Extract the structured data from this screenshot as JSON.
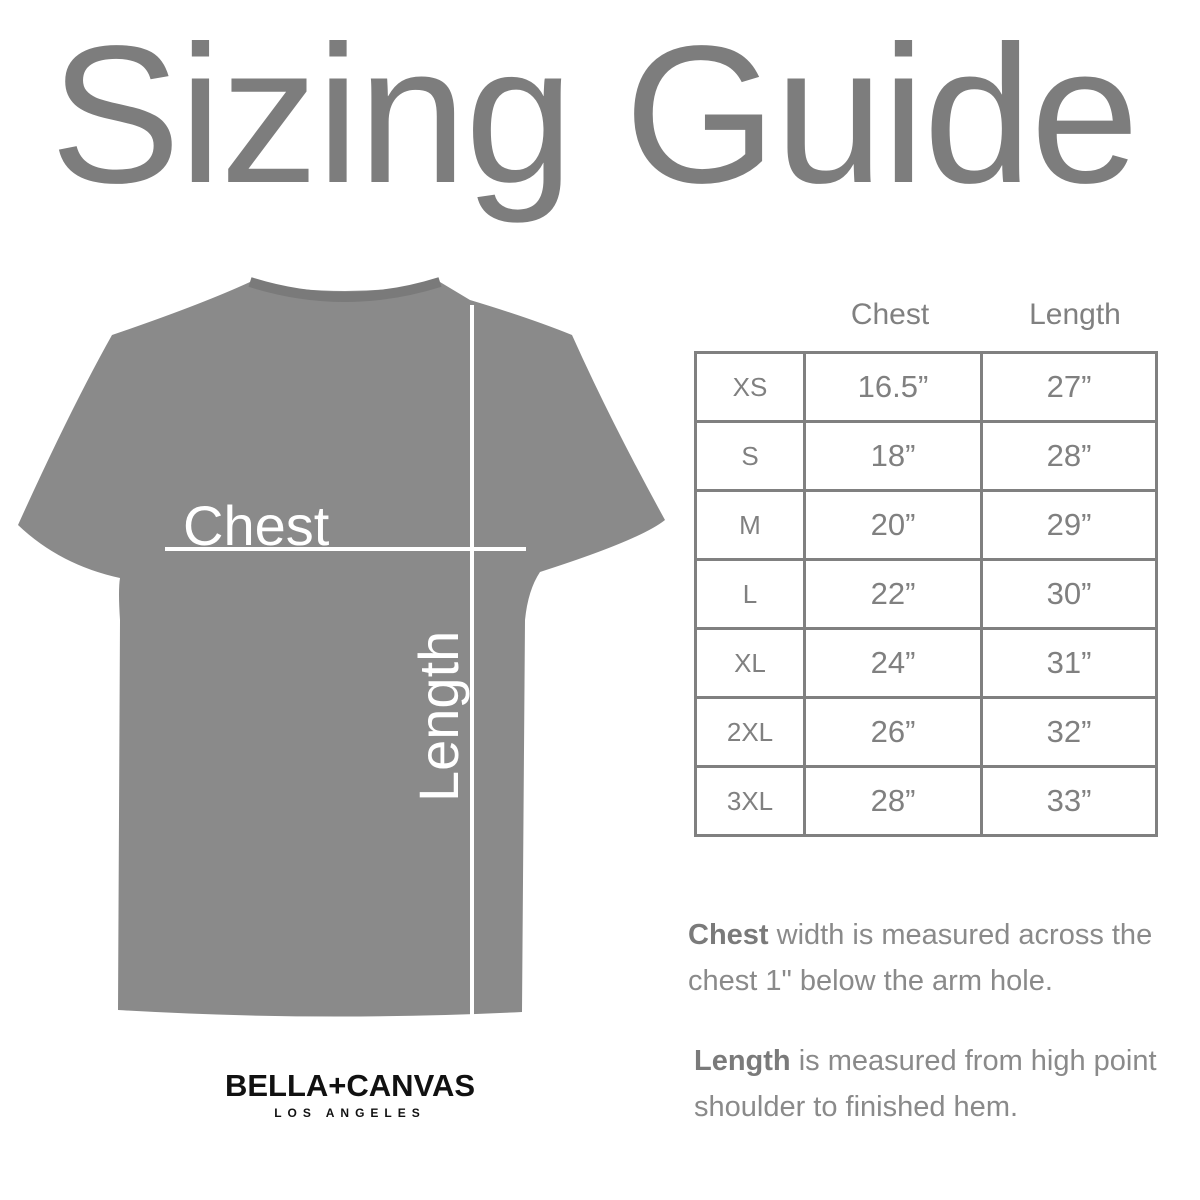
{
  "title": "Sizing Guide",
  "shirt": {
    "chest_label": "Chest",
    "length_label": "Length",
    "color": "#8a8a8a"
  },
  "table": {
    "headers": [
      "Chest",
      "Length"
    ],
    "rows": [
      {
        "size": "XS",
        "chest": "16.5”",
        "length": "27”"
      },
      {
        "size": "S",
        "chest": "18”",
        "length": "28”"
      },
      {
        "size": "M",
        "chest": "20”",
        "length": "29”"
      },
      {
        "size": "L",
        "chest": "22”",
        "length": "30”"
      },
      {
        "size": "XL",
        "chest": "24”",
        "length": "31”"
      },
      {
        "size": "2XL",
        "chest": "26”",
        "length": "32”"
      },
      {
        "size": "3XL",
        "chest": "28”",
        "length": "33”"
      }
    ]
  },
  "notes": {
    "chest_bold": "Chest",
    "chest_text": " width is measured across the chest 1\" below the arm hole.",
    "length_bold": "Length",
    "length_text": " is measured from high point shoulder to finished hem."
  },
  "logo": {
    "brand": "BELLA+CANVAS",
    "city": "LOS ANGELES"
  }
}
